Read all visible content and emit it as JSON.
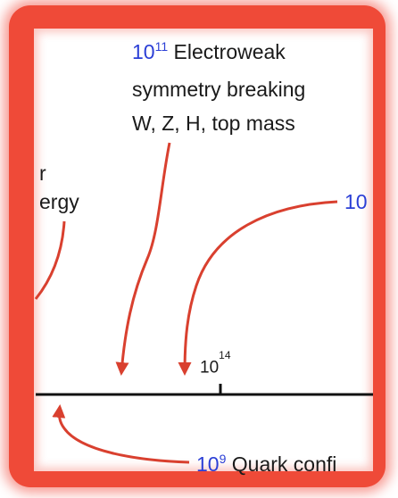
{
  "annotations": {
    "ew": {
      "base": "10",
      "exp": "11",
      "line1": "Electroweak",
      "line2": "symmetry breaking",
      "line3": "W, Z, H, top mass"
    },
    "left_partial": {
      "line1": "r",
      "line2": "ergy"
    },
    "right_partial": {
      "text": "10"
    },
    "axis_tick": {
      "base": "10",
      "exp": "14"
    },
    "quark": {
      "base": "10",
      "exp": "9",
      "label": "Quark confi"
    }
  },
  "colors": {
    "frame": "#ef4a38",
    "arrow": "#d9402f",
    "exponent_text": "#2b3fd6",
    "axis": "#111111"
  }
}
